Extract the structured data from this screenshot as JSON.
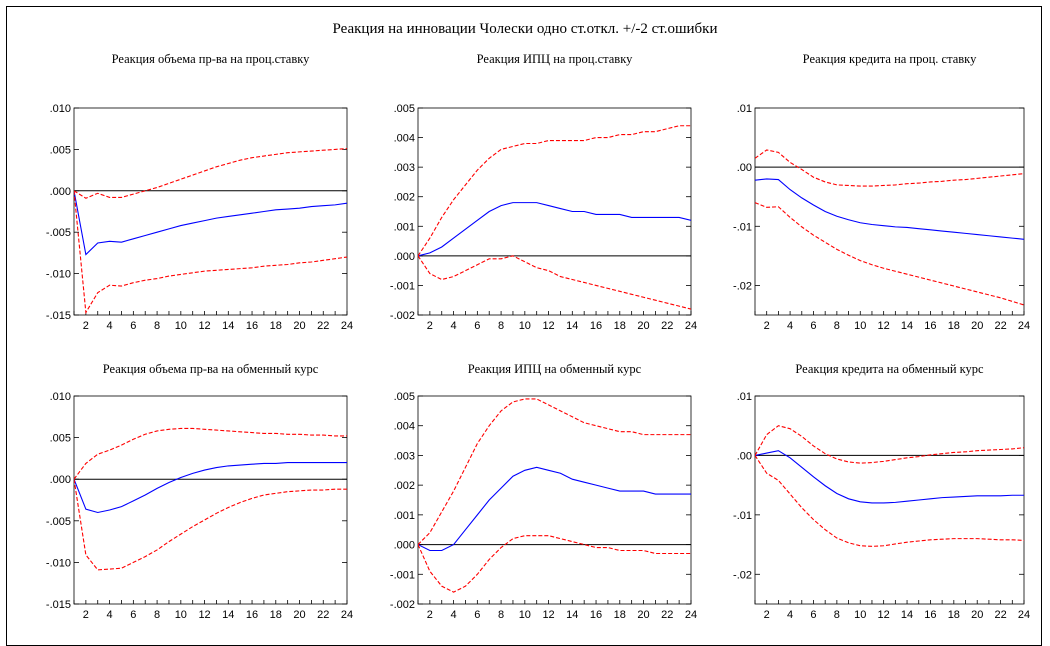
{
  "figure": {
    "title": "Реакция на инновации Чолески одно ст.откл. +/-2 ст.ошибки"
  },
  "chart_data": [
    {
      "type": "line",
      "title": "Реакция объема пр-ва на проц.ставку",
      "x": [
        1,
        2,
        3,
        4,
        5,
        6,
        7,
        8,
        9,
        10,
        11,
        12,
        13,
        14,
        15,
        16,
        17,
        18,
        19,
        20,
        21,
        22,
        23,
        24
      ],
      "xticks": [
        2,
        4,
        6,
        8,
        10,
        12,
        14,
        16,
        18,
        20,
        22,
        24
      ],
      "ylim": [
        -0.015,
        0.01
      ],
      "yticks": [
        -0.015,
        -0.01,
        -0.005,
        0.0,
        0.005,
        0.01
      ],
      "ytick_labels": [
        "-.015",
        "-.010",
        "-.005",
        ".000",
        ".005",
        ".010"
      ],
      "zero_line": true,
      "series": [
        {
          "role": "response",
          "color": "#0000ff",
          "dashed": false,
          "values": [
            0.0,
            -0.0077,
            -0.0063,
            -0.0061,
            -0.0062,
            -0.0058,
            -0.0054,
            -0.005,
            -0.0046,
            -0.0042,
            -0.0039,
            -0.0036,
            -0.0033,
            -0.0031,
            -0.0029,
            -0.0027,
            -0.0025,
            -0.0023,
            -0.0022,
            -0.0021,
            -0.0019,
            -0.0018,
            -0.0017,
            -0.0015
          ]
        },
        {
          "role": "upper",
          "color": "#ff0000",
          "dashed": true,
          "values": [
            0.0,
            -0.0009,
            -0.0003,
            -0.0008,
            -0.0008,
            -0.0004,
            0.0,
            0.0004,
            0.0009,
            0.0014,
            0.0019,
            0.0024,
            0.0029,
            0.0033,
            0.0037,
            0.004,
            0.0042,
            0.0044,
            0.0046,
            0.0047,
            0.0048,
            0.0049,
            0.005,
            0.0051
          ]
        },
        {
          "role": "lower",
          "color": "#ff0000",
          "dashed": true,
          "values": [
            0.0,
            -0.0147,
            -0.0123,
            -0.0114,
            -0.0115,
            -0.0111,
            -0.0108,
            -0.0106,
            -0.0103,
            -0.0101,
            -0.0099,
            -0.0097,
            -0.0096,
            -0.0095,
            -0.0094,
            -0.0093,
            -0.0091,
            -0.009,
            -0.0089,
            -0.0087,
            -0.0086,
            -0.0084,
            -0.0082,
            -0.008
          ]
        }
      ]
    },
    {
      "type": "line",
      "title": "Реакция ИПЦ на проц.ставку",
      "x": [
        1,
        2,
        3,
        4,
        5,
        6,
        7,
        8,
        9,
        10,
        11,
        12,
        13,
        14,
        15,
        16,
        17,
        18,
        19,
        20,
        21,
        22,
        23,
        24
      ],
      "xticks": [
        2,
        4,
        6,
        8,
        10,
        12,
        14,
        16,
        18,
        20,
        22,
        24
      ],
      "ylim": [
        -0.002,
        0.005
      ],
      "yticks": [
        -0.002,
        -0.001,
        0.0,
        0.001,
        0.002,
        0.003,
        0.004,
        0.005
      ],
      "ytick_labels": [
        "-.002",
        "-.001",
        ".000",
        ".001",
        ".002",
        ".003",
        ".004",
        ".005"
      ],
      "zero_line": true,
      "series": [
        {
          "role": "response",
          "color": "#0000ff",
          "dashed": false,
          "values": [
            0.0,
            0.0001,
            0.0003,
            0.0006,
            0.0009,
            0.0012,
            0.0015,
            0.0017,
            0.0018,
            0.0018,
            0.0018,
            0.0017,
            0.0016,
            0.0015,
            0.0015,
            0.0014,
            0.0014,
            0.0014,
            0.0013,
            0.0013,
            0.0013,
            0.0013,
            0.0013,
            0.0012
          ]
        },
        {
          "role": "upper",
          "color": "#ff0000",
          "dashed": true,
          "values": [
            0.0,
            0.0006,
            0.0013,
            0.0019,
            0.0024,
            0.0029,
            0.0033,
            0.0036,
            0.0037,
            0.0038,
            0.0038,
            0.0039,
            0.0039,
            0.0039,
            0.0039,
            0.004,
            0.004,
            0.0041,
            0.0041,
            0.0042,
            0.0042,
            0.0043,
            0.0044,
            0.0044
          ]
        },
        {
          "role": "lower",
          "color": "#ff0000",
          "dashed": true,
          "values": [
            0.0,
            -0.0006,
            -0.0008,
            -0.0007,
            -0.0005,
            -0.0003,
            -0.0001,
            -0.0001,
            0.0,
            -0.0002,
            -0.0004,
            -0.0005,
            -0.0007,
            -0.0008,
            -0.0009,
            -0.001,
            -0.0011,
            -0.0012,
            -0.0013,
            -0.0014,
            -0.0015,
            -0.0016,
            -0.0017,
            -0.0018
          ]
        }
      ]
    },
    {
      "type": "line",
      "title": "Реакция кредита на проц. ставку",
      "x": [
        1,
        2,
        3,
        4,
        5,
        6,
        7,
        8,
        9,
        10,
        11,
        12,
        13,
        14,
        15,
        16,
        17,
        18,
        19,
        20,
        21,
        22,
        23,
        24
      ],
      "xticks": [
        2,
        4,
        6,
        8,
        10,
        12,
        14,
        16,
        18,
        20,
        22,
        24
      ],
      "ylim": [
        -0.025,
        0.01
      ],
      "yticks": [
        -0.02,
        -0.01,
        0.0,
        0.01
      ],
      "ytick_labels": [
        "-.02",
        "-.01",
        ".00",
        ".01"
      ],
      "zero_line": true,
      "series": [
        {
          "role": "response",
          "color": "#0000ff",
          "dashed": false,
          "values": [
            -0.0022,
            -0.002,
            -0.0021,
            -0.0038,
            -0.0052,
            -0.0064,
            -0.0075,
            -0.0083,
            -0.0089,
            -0.0094,
            -0.0097,
            -0.0099,
            -0.0101,
            -0.0102,
            -0.0104,
            -0.0106,
            -0.0108,
            -0.011,
            -0.0112,
            -0.0114,
            -0.0116,
            -0.0118,
            -0.012,
            -0.0122
          ]
        },
        {
          "role": "upper",
          "color": "#ff0000",
          "dashed": true,
          "values": [
            0.0015,
            0.0029,
            0.0025,
            0.0008,
            -0.0004,
            -0.0017,
            -0.0025,
            -0.003,
            -0.0031,
            -0.0032,
            -0.0032,
            -0.0031,
            -0.003,
            -0.0028,
            -0.0027,
            -0.0025,
            -0.0024,
            -0.0022,
            -0.0021,
            -0.0019,
            -0.0017,
            -0.0015,
            -0.0013,
            -0.0011
          ]
        },
        {
          "role": "lower",
          "color": "#ff0000",
          "dashed": true,
          "values": [
            -0.006,
            -0.0068,
            -0.0067,
            -0.0085,
            -0.0101,
            -0.0115,
            -0.0127,
            -0.0139,
            -0.0149,
            -0.0158,
            -0.0165,
            -0.0171,
            -0.0176,
            -0.0181,
            -0.0186,
            -0.0191,
            -0.0196,
            -0.0201,
            -0.0206,
            -0.0211,
            -0.0216,
            -0.0221,
            -0.0227,
            -0.0233
          ]
        }
      ]
    },
    {
      "type": "line",
      "title": "Реакция объема пр-ва на обменный курс",
      "x": [
        1,
        2,
        3,
        4,
        5,
        6,
        7,
        8,
        9,
        10,
        11,
        12,
        13,
        14,
        15,
        16,
        17,
        18,
        19,
        20,
        21,
        22,
        23,
        24
      ],
      "xticks": [
        2,
        4,
        6,
        8,
        10,
        12,
        14,
        16,
        18,
        20,
        22,
        24
      ],
      "ylim": [
        -0.015,
        0.01
      ],
      "yticks": [
        -0.015,
        -0.01,
        -0.005,
        0.0,
        0.005,
        0.01
      ],
      "ytick_labels": [
        "-.015",
        "-.010",
        "-.005",
        ".000",
        ".005",
        ".010"
      ],
      "zero_line": true,
      "series": [
        {
          "role": "response",
          "color": "#0000ff",
          "dashed": false,
          "values": [
            0.0,
            -0.0036,
            -0.004,
            -0.0037,
            -0.0033,
            -0.0026,
            -0.0019,
            -0.0011,
            -0.0004,
            0.0002,
            0.0007,
            0.0011,
            0.0014,
            0.0016,
            0.0017,
            0.0018,
            0.0019,
            0.0019,
            0.002,
            0.002,
            0.002,
            0.002,
            0.002,
            0.002
          ]
        },
        {
          "role": "upper",
          "color": "#ff0000",
          "dashed": true,
          "values": [
            0.0,
            0.0019,
            0.003,
            0.0035,
            0.0041,
            0.0048,
            0.0054,
            0.0058,
            0.006,
            0.0061,
            0.0061,
            0.006,
            0.0059,
            0.0058,
            0.0057,
            0.0056,
            0.0055,
            0.0055,
            0.0054,
            0.0054,
            0.0053,
            0.0053,
            0.0052,
            0.0052
          ]
        },
        {
          "role": "lower",
          "color": "#ff0000",
          "dashed": true,
          "values": [
            0.0,
            -0.0091,
            -0.0109,
            -0.0108,
            -0.0107,
            -0.01,
            -0.0093,
            -0.0085,
            -0.0075,
            -0.0066,
            -0.0057,
            -0.0049,
            -0.0041,
            -0.0034,
            -0.0028,
            -0.0023,
            -0.0019,
            -0.0017,
            -0.0015,
            -0.0014,
            -0.0013,
            -0.0013,
            -0.0012,
            -0.0012
          ]
        }
      ]
    },
    {
      "type": "line",
      "title": "Реакция ИПЦ на обменный курс",
      "x": [
        1,
        2,
        3,
        4,
        5,
        6,
        7,
        8,
        9,
        10,
        11,
        12,
        13,
        14,
        15,
        16,
        17,
        18,
        19,
        20,
        21,
        22,
        23,
        24
      ],
      "xticks": [
        2,
        4,
        6,
        8,
        10,
        12,
        14,
        16,
        18,
        20,
        22,
        24
      ],
      "ylim": [
        -0.002,
        0.005
      ],
      "yticks": [
        -0.002,
        -0.001,
        0.0,
        0.001,
        0.002,
        0.003,
        0.004,
        0.005
      ],
      "ytick_labels": [
        "-.002",
        "-.001",
        ".000",
        ".001",
        ".002",
        ".003",
        ".004",
        ".005"
      ],
      "zero_line": true,
      "series": [
        {
          "role": "response",
          "color": "#0000ff",
          "dashed": false,
          "values": [
            0.0,
            -0.0002,
            -0.0002,
            0.0,
            0.0005,
            0.001,
            0.0015,
            0.0019,
            0.0023,
            0.0025,
            0.0026,
            0.0025,
            0.0024,
            0.0022,
            0.0021,
            0.002,
            0.0019,
            0.0018,
            0.0018,
            0.0018,
            0.0017,
            0.0017,
            0.0017,
            0.0017
          ]
        },
        {
          "role": "upper",
          "color": "#ff0000",
          "dashed": true,
          "values": [
            0.0,
            0.0004,
            0.0011,
            0.0018,
            0.0026,
            0.0034,
            0.004,
            0.0045,
            0.0048,
            0.0049,
            0.0049,
            0.0047,
            0.0045,
            0.0043,
            0.0041,
            0.004,
            0.0039,
            0.0038,
            0.0038,
            0.0037,
            0.0037,
            0.0037,
            0.0037,
            0.0037
          ]
        },
        {
          "role": "lower",
          "color": "#ff0000",
          "dashed": true,
          "values": [
            0.0,
            -0.0009,
            -0.0014,
            -0.0016,
            -0.0014,
            -0.001,
            -0.0005,
            -0.0001,
            0.0002,
            0.0003,
            0.0003,
            0.0003,
            0.0002,
            0.0001,
            0.0,
            -0.0001,
            -0.0001,
            -0.0002,
            -0.0002,
            -0.0002,
            -0.0003,
            -0.0003,
            -0.0003,
            -0.0003
          ]
        }
      ]
    },
    {
      "type": "line",
      "title": "Реакция кредита на обменный курс",
      "x": [
        1,
        2,
        3,
        4,
        5,
        6,
        7,
        8,
        9,
        10,
        11,
        12,
        13,
        14,
        15,
        16,
        17,
        18,
        19,
        20,
        21,
        22,
        23,
        24
      ],
      "xticks": [
        2,
        4,
        6,
        8,
        10,
        12,
        14,
        16,
        18,
        20,
        22,
        24
      ],
      "ylim": [
        -0.025,
        0.01
      ],
      "yticks": [
        -0.02,
        -0.01,
        0.0,
        0.01
      ],
      "ytick_labels": [
        "-.02",
        "-.01",
        ".00",
        ".01"
      ],
      "zero_line": true,
      "series": [
        {
          "role": "response",
          "color": "#0000ff",
          "dashed": false,
          "values": [
            0.0,
            0.0004,
            0.0008,
            -0.0004,
            -0.002,
            -0.0036,
            -0.0051,
            -0.0064,
            -0.0073,
            -0.0078,
            -0.008,
            -0.008,
            -0.0079,
            -0.0077,
            -0.0075,
            -0.0073,
            -0.0071,
            -0.007,
            -0.0069,
            -0.0068,
            -0.0068,
            -0.0068,
            -0.0067,
            -0.0067
          ]
        },
        {
          "role": "upper",
          "color": "#ff0000",
          "dashed": true,
          "values": [
            0.0,
            0.0035,
            0.005,
            0.0045,
            0.0032,
            0.0016,
            0.0003,
            -0.0006,
            -0.0011,
            -0.0013,
            -0.0012,
            -0.001,
            -0.0007,
            -0.0004,
            -0.0002,
            0.0001,
            0.0003,
            0.0005,
            0.0006,
            0.0008,
            0.0009,
            0.001,
            0.0011,
            0.0013
          ]
        },
        {
          "role": "lower",
          "color": "#ff0000",
          "dashed": true,
          "values": [
            0.0,
            -0.003,
            -0.0042,
            -0.0065,
            -0.0088,
            -0.0108,
            -0.0125,
            -0.0139,
            -0.0147,
            -0.0152,
            -0.0153,
            -0.0152,
            -0.0149,
            -0.0146,
            -0.0144,
            -0.0142,
            -0.0141,
            -0.014,
            -0.014,
            -0.014,
            -0.0141,
            -0.0142,
            -0.0142,
            -0.0143
          ]
        }
      ]
    }
  ]
}
